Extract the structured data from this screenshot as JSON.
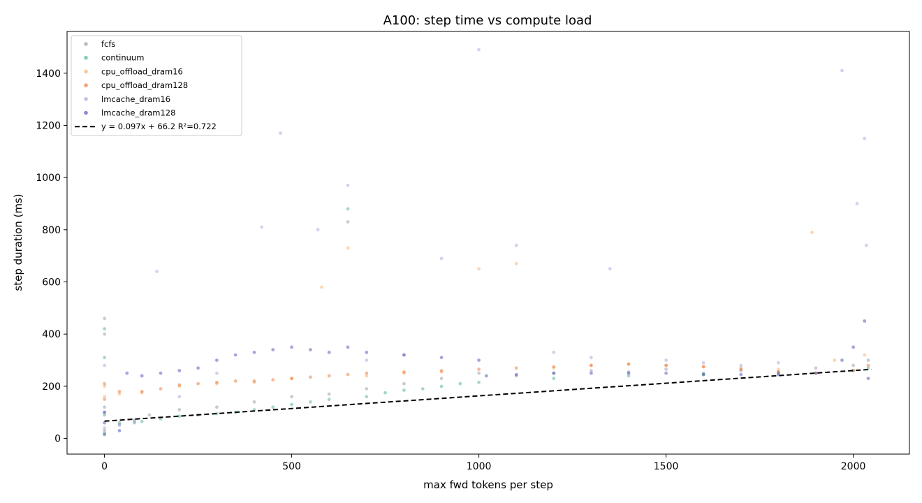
{
  "chart_data": {
    "type": "scatter",
    "title": "A100: step time vs compute load",
    "xlabel": "max fwd tokens per step",
    "ylabel": "step duration (ms)",
    "xlim": [
      -100,
      2150
    ],
    "ylim": [
      -60,
      1560
    ],
    "x_ticks": [
      0,
      500,
      1000,
      1500,
      2000
    ],
    "y_ticks": [
      0,
      200,
      400,
      600,
      800,
      1000,
      1200,
      1400
    ],
    "grid": false,
    "legend_position": "top-left",
    "series": [
      {
        "name": "fcfs",
        "color": "#8c8c9c",
        "points": [
          [
            0,
            30
          ],
          [
            0,
            120
          ],
          [
            0,
            400
          ],
          [
            0,
            460
          ],
          [
            40,
            60
          ],
          [
            80,
            70
          ],
          [
            120,
            90
          ],
          [
            200,
            110
          ],
          [
            300,
            120
          ],
          [
            400,
            140
          ],
          [
            500,
            160
          ],
          [
            600,
            170
          ],
          [
            650,
            830
          ],
          [
            700,
            190
          ],
          [
            800,
            210
          ],
          [
            900,
            230
          ],
          [
            1000,
            250
          ],
          [
            1100,
            240
          ],
          [
            1200,
            250
          ],
          [
            1300,
            260
          ],
          [
            1400,
            255
          ],
          [
            1500,
            265
          ],
          [
            1600,
            250
          ],
          [
            1700,
            260
          ],
          [
            1800,
            255
          ],
          [
            1900,
            270
          ],
          [
            2000,
            280
          ],
          [
            2040,
            300
          ]
        ]
      },
      {
        "name": "continuum",
        "color": "#3aa887",
        "points": [
          [
            0,
            20
          ],
          [
            0,
            90
          ],
          [
            0,
            310
          ],
          [
            0,
            420
          ],
          [
            40,
            55
          ],
          [
            80,
            60
          ],
          [
            100,
            65
          ],
          [
            150,
            75
          ],
          [
            200,
            85
          ],
          [
            250,
            90
          ],
          [
            300,
            95
          ],
          [
            350,
            100
          ],
          [
            400,
            110
          ],
          [
            450,
            120
          ],
          [
            500,
            130
          ],
          [
            550,
            140
          ],
          [
            600,
            150
          ],
          [
            650,
            880
          ],
          [
            700,
            160
          ],
          [
            750,
            175
          ],
          [
            800,
            185
          ],
          [
            850,
            190
          ],
          [
            900,
            200
          ],
          [
            950,
            210
          ],
          [
            1000,
            215
          ],
          [
            1200,
            230
          ],
          [
            1400,
            240
          ],
          [
            1600,
            245
          ],
          [
            1800,
            250
          ],
          [
            2000,
            260
          ],
          [
            2040,
            270
          ]
        ]
      },
      {
        "name": "cpu_offload_dram16",
        "color": "#f3a35c",
        "points": [
          [
            0,
            160
          ],
          [
            0,
            200
          ],
          [
            40,
            170
          ],
          [
            100,
            175
          ],
          [
            200,
            200
          ],
          [
            300,
            210
          ],
          [
            400,
            215
          ],
          [
            500,
            230
          ],
          [
            580,
            580
          ],
          [
            650,
            730
          ],
          [
            700,
            240
          ],
          [
            800,
            250
          ],
          [
            900,
            255
          ],
          [
            1000,
            650
          ],
          [
            1100,
            670
          ],
          [
            1200,
            270
          ],
          [
            1300,
            280
          ],
          [
            1400,
            285
          ],
          [
            1500,
            280
          ],
          [
            1600,
            275
          ],
          [
            1700,
            270
          ],
          [
            1800,
            265
          ],
          [
            1890,
            790
          ],
          [
            1950,
            300
          ],
          [
            2030,
            320
          ]
        ]
      },
      {
        "name": "cpu_offload_dram128",
        "color": "#e8661c",
        "points": [
          [
            0,
            150
          ],
          [
            0,
            210
          ],
          [
            40,
            180
          ],
          [
            100,
            180
          ],
          [
            150,
            190
          ],
          [
            200,
            205
          ],
          [
            250,
            210
          ],
          [
            300,
            215
          ],
          [
            350,
            220
          ],
          [
            400,
            220
          ],
          [
            450,
            225
          ],
          [
            500,
            230
          ],
          [
            550,
            235
          ],
          [
            600,
            240
          ],
          [
            650,
            245
          ],
          [
            700,
            250
          ],
          [
            800,
            255
          ],
          [
            900,
            260
          ],
          [
            1000,
            265
          ],
          [
            1100,
            270
          ],
          [
            1200,
            275
          ],
          [
            1300,
            280
          ],
          [
            1400,
            285
          ],
          [
            1500,
            280
          ],
          [
            1600,
            275
          ],
          [
            1700,
            265
          ],
          [
            1800,
            255
          ],
          [
            1900,
            250
          ],
          [
            2000,
            260
          ],
          [
            2040,
            280
          ]
        ]
      },
      {
        "name": "lmcache_dram16",
        "color": "#9e98d6",
        "points": [
          [
            0,
            40
          ],
          [
            0,
            100
          ],
          [
            0,
            280
          ],
          [
            40,
            50
          ],
          [
            80,
            65
          ],
          [
            140,
            640
          ],
          [
            200,
            160
          ],
          [
            300,
            250
          ],
          [
            420,
            810
          ],
          [
            470,
            1170
          ],
          [
            570,
            800
          ],
          [
            650,
            970
          ],
          [
            700,
            300
          ],
          [
            800,
            320
          ],
          [
            900,
            690
          ],
          [
            1000,
            1490
          ],
          [
            1100,
            740
          ],
          [
            1200,
            330
          ],
          [
            1300,
            310
          ],
          [
            1350,
            650
          ],
          [
            1500,
            300
          ],
          [
            1600,
            290
          ],
          [
            1700,
            280
          ],
          [
            1800,
            290
          ],
          [
            1970,
            1410
          ],
          [
            2010,
            900
          ],
          [
            2030,
            1150
          ],
          [
            2035,
            740
          ]
        ]
      },
      {
        "name": "lmcache_dram128",
        "color": "#3a38b4",
        "points": [
          [
            0,
            15
          ],
          [
            0,
            60
          ],
          [
            0,
            100
          ],
          [
            40,
            30
          ],
          [
            60,
            250
          ],
          [
            100,
            240
          ],
          [
            150,
            250
          ],
          [
            200,
            260
          ],
          [
            250,
            270
          ],
          [
            300,
            300
          ],
          [
            350,
            320
          ],
          [
            400,
            330
          ],
          [
            450,
            340
          ],
          [
            500,
            350
          ],
          [
            550,
            340
          ],
          [
            600,
            330
          ],
          [
            650,
            350
          ],
          [
            700,
            330
          ],
          [
            800,
            320
          ],
          [
            900,
            310
          ],
          [
            1000,
            300
          ],
          [
            1020,
            240
          ],
          [
            1100,
            245
          ],
          [
            1200,
            250
          ],
          [
            1300,
            250
          ],
          [
            1400,
            250
          ],
          [
            1500,
            250
          ],
          [
            1600,
            245
          ],
          [
            1700,
            245
          ],
          [
            1800,
            245
          ],
          [
            1900,
            250
          ],
          [
            1970,
            300
          ],
          [
            2000,
            350
          ],
          [
            2030,
            450
          ],
          [
            2040,
            230
          ]
        ]
      }
    ],
    "fit_line": {
      "label": "y = 0.097x + 66.2  R²=0.722",
      "slope": 0.097,
      "intercept": 66.2,
      "r2": 0.722,
      "x_range": [
        0,
        2048
      ],
      "color": "#000000",
      "style": "dashed"
    }
  }
}
